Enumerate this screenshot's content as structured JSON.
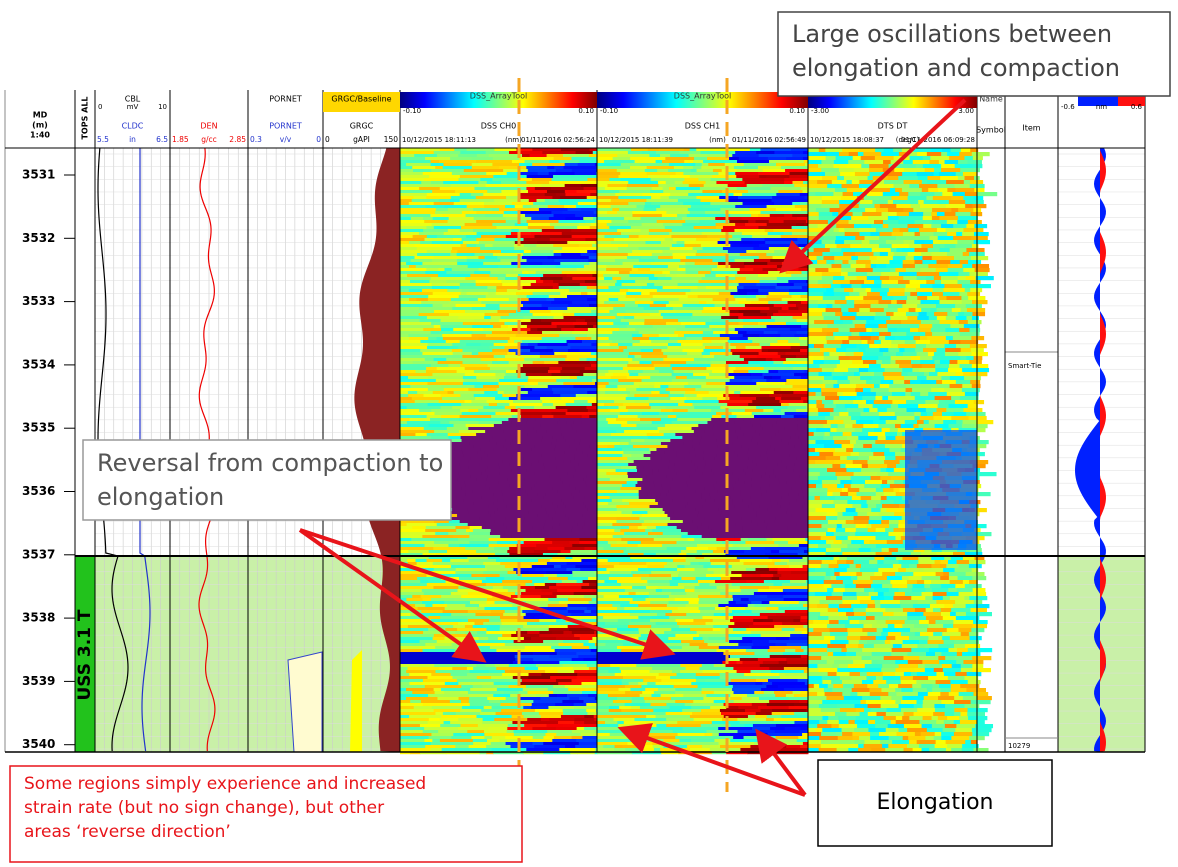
{
  "depth_header": {
    "label": "MD",
    "unit": "(m)",
    "scale": "1:40"
  },
  "tops_header": "TOPS ALL",
  "tracks": [
    {
      "title": "CBL",
      "scale": [
        "0",
        "mV",
        "10"
      ],
      "curve": "CLDC",
      "curve_scale": [
        "5.5",
        "in",
        "6.5"
      ]
    },
    {
      "curve": "DEN",
      "curve_scale": [
        "1.85",
        "g/cc",
        "2.85"
      ]
    },
    {
      "title": "PORNET",
      "curve": "PORNET",
      "curve_scale": [
        "0.3",
        "v/v",
        "0"
      ]
    },
    {
      "title": "GRGC/Baseline",
      "curve": "GRGC",
      "curve_scale": [
        "0",
        "gAPI",
        "150"
      ]
    },
    {
      "title": "DSS_ArrayTool",
      "scale": [
        "-0.10",
        "0.10"
      ],
      "curve": "DSS CH0",
      "curve_scale": [
        "10/12/2015 18:11:13",
        "(nm)",
        "01/11/2016 02:56:24"
      ]
    },
    {
      "title": "DSS_ArrayTool",
      "scale": [
        "-0.10",
        "0.10"
      ],
      "curve": "DSS CH1",
      "curve_scale": [
        "10/12/2015 18:11:39",
        "(nm)",
        "01/11/2016 02:56:49"
      ]
    },
    {
      "scale": [
        "-3.00",
        "3.00"
      ],
      "curve": "DTS DT",
      "curve_scale": [
        "10/12/2015 18:08:37",
        "(degC)",
        "01/11/2016 06:09:28"
      ]
    },
    {
      "title": "Name",
      "curve": "Symbol"
    },
    {
      "curve": "Item"
    },
    {
      "scale": [
        "-0.6",
        "nm",
        "0.6"
      ]
    }
  ],
  "depths": [
    "3531",
    "3532",
    "3533",
    "3534",
    "3535",
    "3536",
    "3537",
    "3538",
    "3539",
    "3540"
  ],
  "zone_label": "USS 3.1 T",
  "item_labels": [
    "Smart-Tie",
    "10279"
  ],
  "annotations": {
    "oscillations": "Large oscillations between elongation and compaction",
    "reversal": "Reversal from compaction to elongation",
    "regions": "Some regions simply experience and increased strain rate (but no sign change), but other areas ‘reverse direction’",
    "elongation": "Elongation"
  }
}
